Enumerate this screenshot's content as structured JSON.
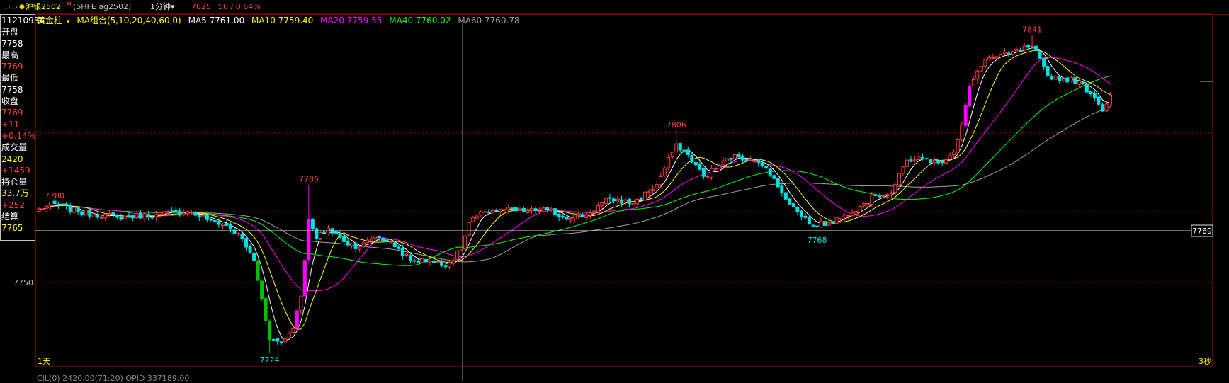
{
  "topbar": {
    "menu_glyph": "▭▭",
    "dot": "●",
    "symbol": "沪银2502",
    "marker": "M",
    "exchange": "(SHFE ag2502)",
    "timeframe": "1分钟",
    "last_price": "7825",
    "change": "50 / 0.64%"
  },
  "legend": {
    "mode": "黄金柱",
    "ma_group": "MA组合(5,10,20,40,60,0)",
    "ma5": "MA5 7761.00",
    "ma10": "MA10 7759.40",
    "ma20": "MA20 7759.55",
    "ma40": "MA40 7760.02",
    "ma60": "MA60 7760.78"
  },
  "info_panel": {
    "time": "11210934",
    "open_label": "开盘",
    "open": "7758",
    "high_label": "最高",
    "high": "7769",
    "low_label": "最低",
    "low": "7758",
    "close_label": "收盘",
    "close": "7769",
    "change": "+11",
    "change_pct": "+0.14%",
    "volume_label": "成交量",
    "volume": "2420",
    "volume_change": "+1459",
    "oi_label": "持仓量",
    "oi": "33.7万",
    "oi_change": "+252",
    "settle_label": "结算",
    "settle": "7765"
  },
  "axis": {
    "tick_7750": "7750",
    "price_tag": "7769",
    "left_label": "1天",
    "right_label": "3秒"
  },
  "bottombar": {
    "text": "CJL(0)    2420.00(71:20)  OPID 337189.00"
  },
  "colors": {
    "up": "#ff3c3c",
    "down": "#00e0e0",
    "gold_up": "#ff00ff",
    "gold_down": "#00c000",
    "ma5": "#ffffff",
    "ma10": "#ffff00",
    "ma20": "#ff00ff",
    "ma40": "#00ff00",
    "ma60": "#a0a0a0",
    "grid": "#8b0000",
    "frame": "#a00000"
  },
  "chart_data": {
    "type": "candlestick",
    "y_range": [
      7719,
      7844
    ],
    "gridlines": [
      7750,
      7776,
      7805
    ],
    "current_price_line": 7769,
    "crosshair_bar_index": 108,
    "annotations": [
      {
        "text": "7780",
        "bar": 4,
        "value": 7780,
        "kind": "high"
      },
      {
        "text": "7786",
        "bar": 69,
        "value": 7786,
        "kind": "high"
      },
      {
        "text": "7724",
        "bar": 59,
        "value": 7724,
        "kind": "low"
      },
      {
        "text": "7806",
        "bar": 163,
        "value": 7806,
        "kind": "high"
      },
      {
        "text": "7768",
        "bar": 199,
        "value": 7768,
        "kind": "low"
      },
      {
        "text": "7841",
        "bar": 254,
        "value": 7841,
        "kind": "high"
      }
    ],
    "anchors": [
      [
        0,
        7777
      ],
      [
        4,
        7779
      ],
      [
        10,
        7776
      ],
      [
        20,
        7774
      ],
      [
        30,
        7775
      ],
      [
        38,
        7776
      ],
      [
        44,
        7773
      ],
      [
        48,
        7771
      ],
      [
        52,
        7766
      ],
      [
        55,
        7758
      ],
      [
        57,
        7744
      ],
      [
        59,
        7729
      ],
      [
        62,
        7728
      ],
      [
        65,
        7733
      ],
      [
        67,
        7745
      ],
      [
        69,
        7773
      ],
      [
        71,
        7766
      ],
      [
        74,
        7770
      ],
      [
        78,
        7765
      ],
      [
        82,
        7763
      ],
      [
        86,
        7767
      ],
      [
        90,
        7765
      ],
      [
        95,
        7758
      ],
      [
        100,
        7758
      ],
      [
        104,
        7756
      ],
      [
        108,
        7762
      ],
      [
        110,
        7772
      ],
      [
        114,
        7776
      ],
      [
        118,
        7777
      ],
      [
        124,
        7776
      ],
      [
        130,
        7777
      ],
      [
        134,
        7774
      ],
      [
        140,
        7775
      ],
      [
        146,
        7781
      ],
      [
        152,
        7779
      ],
      [
        158,
        7786
      ],
      [
        163,
        7801
      ],
      [
        166,
        7797
      ],
      [
        170,
        7789
      ],
      [
        174,
        7793
      ],
      [
        178,
        7797
      ],
      [
        182,
        7795
      ],
      [
        186,
        7792
      ],
      [
        190,
        7783
      ],
      [
        194,
        7776
      ],
      [
        198,
        7771
      ],
      [
        202,
        7772
      ],
      [
        206,
        7775
      ],
      [
        210,
        7778
      ],
      [
        214,
        7782
      ],
      [
        218,
        7783
      ],
      [
        222,
        7795
      ],
      [
        226,
        7796
      ],
      [
        230,
        7794
      ],
      [
        234,
        7798
      ],
      [
        236,
        7808
      ],
      [
        238,
        7822
      ],
      [
        242,
        7832
      ],
      [
        248,
        7834
      ],
      [
        254,
        7837
      ],
      [
        258,
        7826
      ],
      [
        262,
        7825
      ],
      [
        266,
        7824
      ],
      [
        270,
        7818
      ],
      [
        272,
        7813
      ],
      [
        274,
        7819
      ]
    ]
  }
}
